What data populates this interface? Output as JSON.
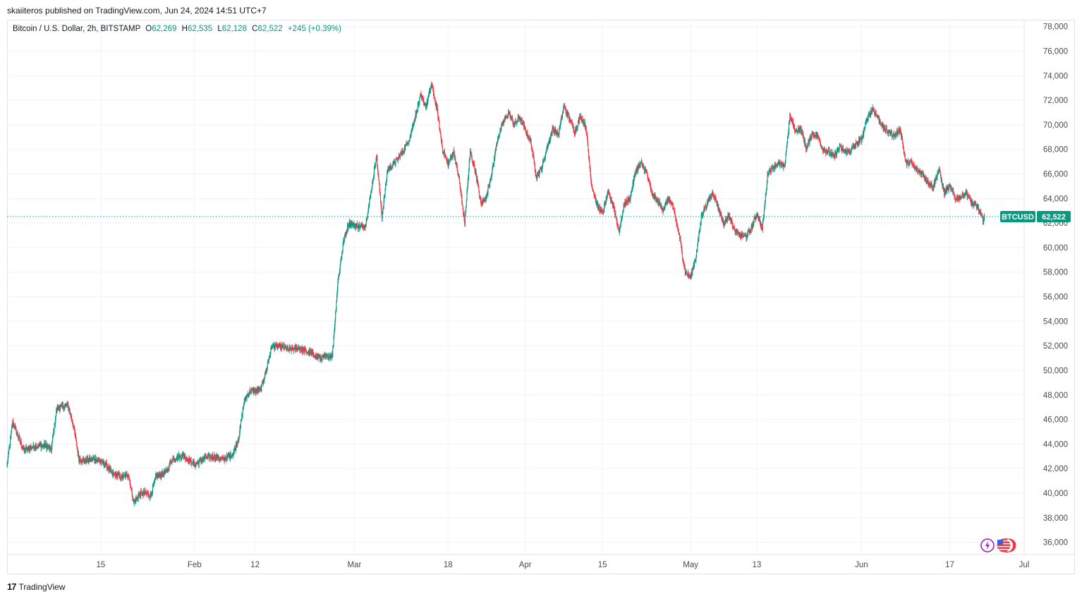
{
  "header": {
    "publish_line": "skaiiteros published on TradingView.com, Jun 24, 2024 14:51 UTC+7"
  },
  "legend": {
    "symbol": "Bitcoin / U.S. Dollar, 2h, BITSTAMP",
    "open_label": "O",
    "open_value": "62,269",
    "high_label": "H",
    "high_value": "62,535",
    "low_label": "L",
    "low_value": "62,128",
    "close_label": "C",
    "close_value": "62,522",
    "change": "+245 (+0.39%)"
  },
  "price_tag": {
    "symbol": "BTCUSD",
    "value": "62,522"
  },
  "footer": {
    "brand": "TradingView",
    "logo_glyph": "17"
  },
  "colors": {
    "up": "#089981",
    "down": "#f23645",
    "grid": "#f0f3fa",
    "text": "#131722",
    "axis_text": "#4a4a4a"
  },
  "chart_data": {
    "type": "candlestick",
    "title": "Bitcoin / U.S. Dollar, 2h, BITSTAMP",
    "ylim": [
      35000,
      78500
    ],
    "y_ticks": [
      36000,
      38000,
      40000,
      42000,
      44000,
      46000,
      48000,
      50000,
      52000,
      54000,
      56000,
      58000,
      60000,
      62000,
      64000,
      66000,
      68000,
      70000,
      72000,
      74000,
      76000,
      78000
    ],
    "y_tick_labels": [
      "36,000",
      "38,000",
      "40,000",
      "42,000",
      "44,000",
      "46,000",
      "48,000",
      "50,000",
      "52,000",
      "54,000",
      "56,000",
      "58,000",
      "60,000",
      "62,000",
      "64,000",
      "66,000",
      "68,000",
      "70,000",
      "72,000",
      "74,000",
      "76,000",
      "78,000"
    ],
    "x_day_range": [
      -3,
      181.5
    ],
    "x_ticks": [
      {
        "day": 14,
        "label": "15"
      },
      {
        "day": 31,
        "label": "Feb"
      },
      {
        "day": 42,
        "label": "12"
      },
      {
        "day": 60,
        "label": "Mar"
      },
      {
        "day": 77,
        "label": "18"
      },
      {
        "day": 91,
        "label": "Apr"
      },
      {
        "day": 105,
        "label": "15"
      },
      {
        "day": 121,
        "label": "May"
      },
      {
        "day": 133,
        "label": "13"
      },
      {
        "day": 152,
        "label": "Jun"
      },
      {
        "day": 168,
        "label": "17"
      },
      {
        "day": 182,
        "label": "Jul"
      }
    ],
    "last_price": 62522,
    "path_keypoints": [
      [
        -3,
        42300
      ],
      [
        -2,
        45800
      ],
      [
        0,
        43500
      ],
      [
        2,
        43800
      ],
      [
        4,
        43900
      ],
      [
        5,
        43500
      ],
      [
        6,
        46900
      ],
      [
        8,
        47200
      ],
      [
        9,
        45600
      ],
      [
        10,
        42800
      ],
      [
        11,
        42600
      ],
      [
        13,
        42800
      ],
      [
        15,
        42300
      ],
      [
        16,
        41600
      ],
      [
        18,
        41300
      ],
      [
        19,
        41500
      ],
      [
        20,
        39200
      ],
      [
        21,
        39900
      ],
      [
        22,
        40000
      ],
      [
        23,
        39800
      ],
      [
        24,
        41300
      ],
      [
        26,
        41800
      ],
      [
        27,
        42800
      ],
      [
        29,
        43100
      ],
      [
        31,
        42300
      ],
      [
        33,
        42900
      ],
      [
        35,
        43000
      ],
      [
        36,
        42700
      ],
      [
        38,
        43200
      ],
      [
        39,
        44500
      ],
      [
        40,
        47500
      ],
      [
        41,
        48300
      ],
      [
        43,
        48400
      ],
      [
        44,
        50000
      ],
      [
        45,
        52000
      ],
      [
        47,
        51900
      ],
      [
        48,
        51700
      ],
      [
        50,
        51800
      ],
      [
        52,
        51400
      ],
      [
        54,
        51000
      ],
      [
        55,
        51100
      ],
      [
        56,
        51200
      ],
      [
        57,
        57200
      ],
      [
        58,
        60400
      ],
      [
        59,
        62000
      ],
      [
        61,
        61700
      ],
      [
        62,
        61800
      ],
      [
        63,
        64500
      ],
      [
        64,
        67500
      ],
      [
        65,
        62500
      ],
      [
        66,
        66300
      ],
      [
        68,
        67300
      ],
      [
        69,
        68000
      ],
      [
        70,
        68900
      ],
      [
        72,
        72300
      ],
      [
        73,
        71500
      ],
      [
        74,
        73300
      ],
      [
        75,
        71200
      ],
      [
        76,
        68000
      ],
      [
        77,
        66800
      ],
      [
        78,
        67800
      ],
      [
        79,
        65500
      ],
      [
        80,
        62000
      ],
      [
        81,
        67800
      ],
      [
        82,
        66100
      ],
      [
        83,
        63500
      ],
      [
        84,
        64200
      ],
      [
        85,
        66300
      ],
      [
        86,
        68900
      ],
      [
        87,
        70200
      ],
      [
        88,
        71000
      ],
      [
        89,
        70000
      ],
      [
        90,
        70600
      ],
      [
        91,
        69600
      ],
      [
        92,
        68600
      ],
      [
        93,
        65800
      ],
      [
        94,
        66500
      ],
      [
        95,
        68200
      ],
      [
        96,
        69700
      ],
      [
        97,
        69200
      ],
      [
        98,
        71500
      ],
      [
        99,
        70500
      ],
      [
        100,
        69400
      ],
      [
        101,
        70700
      ],
      [
        102,
        69800
      ],
      [
        103,
        65200
      ],
      [
        104,
        63500
      ],
      [
        105,
        62800
      ],
      [
        106,
        64500
      ],
      [
        107,
        63400
      ],
      [
        108,
        61300
      ],
      [
        109,
        63600
      ],
      [
        110,
        64000
      ],
      [
        111,
        66200
      ],
      [
        112,
        66900
      ],
      [
        113,
        66100
      ],
      [
        114,
        64300
      ],
      [
        115,
        63800
      ],
      [
        116,
        63100
      ],
      [
        117,
        64000
      ],
      [
        118,
        63000
      ],
      [
        119,
        60800
      ],
      [
        120,
        58000
      ],
      [
        121,
        57600
      ],
      [
        122,
        59400
      ],
      [
        123,
        62700
      ],
      [
        124,
        63600
      ],
      [
        125,
        64500
      ],
      [
        126,
        63300
      ],
      [
        127,
        61900
      ],
      [
        128,
        62700
      ],
      [
        129,
        61300
      ],
      [
        130,
        61000
      ],
      [
        131,
        60900
      ],
      [
        132,
        61500
      ],
      [
        133,
        62800
      ],
      [
        134,
        61500
      ],
      [
        135,
        66100
      ],
      [
        136,
        66600
      ],
      [
        137,
        66900
      ],
      [
        138,
        66500
      ],
      [
        139,
        70700
      ],
      [
        140,
        69500
      ],
      [
        141,
        69700
      ],
      [
        142,
        68000
      ],
      [
        143,
        69300
      ],
      [
        144,
        69100
      ],
      [
        145,
        68000
      ],
      [
        146,
        67800
      ],
      [
        147,
        67400
      ],
      [
        148,
        68200
      ],
      [
        149,
        67800
      ],
      [
        150,
        67900
      ],
      [
        151,
        68400
      ],
      [
        152,
        68800
      ],
      [
        153,
        70500
      ],
      [
        154,
        71300
      ],
      [
        155,
        70600
      ],
      [
        156,
        69700
      ],
      [
        157,
        69400
      ],
      [
        158,
        69100
      ],
      [
        159,
        69700
      ],
      [
        160,
        66900
      ],
      [
        161,
        66900
      ],
      [
        162,
        66300
      ],
      [
        163,
        66100
      ],
      [
        164,
        65400
      ],
      [
        165,
        64900
      ],
      [
        166,
        66400
      ],
      [
        167,
        64500
      ],
      [
        168,
        65000
      ],
      [
        169,
        64000
      ],
      [
        170,
        64100
      ],
      [
        171,
        64500
      ],
      [
        172,
        63600
      ],
      [
        173,
        63300
      ],
      [
        174,
        62300
      ],
      [
        174.3,
        62522
      ]
    ]
  }
}
